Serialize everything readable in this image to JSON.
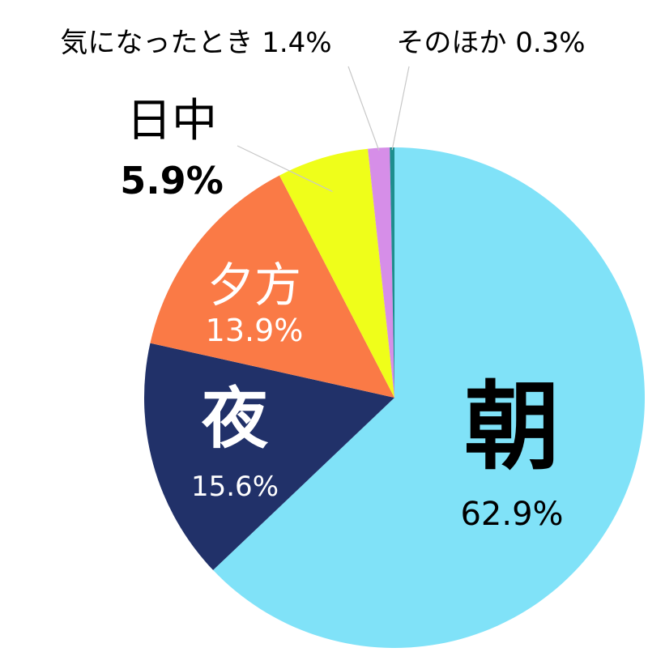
{
  "chart_data": {
    "type": "pie",
    "start_angle_deg": 0,
    "direction": "clockwise",
    "slices": [
      {
        "label": "朝",
        "value": 62.9,
        "value_label": "62.9%",
        "color": "#80E2F8",
        "label_color": "#000000"
      },
      {
        "label": "夜",
        "value": 15.6,
        "value_label": "15.6%",
        "color": "#213169",
        "label_color": "#ffffff"
      },
      {
        "label": "夕方",
        "value": 13.9,
        "value_label": "13.9%",
        "color": "#FA7A46",
        "label_color": "#ffffff"
      },
      {
        "label": "日中",
        "value": 5.9,
        "value_label": "5.9%",
        "color": "#EFFE1A",
        "label_color": "#000000"
      },
      {
        "label": "気になったとき",
        "value": 1.4,
        "value_label": "1.4%",
        "color": "#D68EE8",
        "label_color": "#000000"
      },
      {
        "label": "そのほか",
        "value": 0.3,
        "value_label": "0.3%",
        "color": "#1E8E8E",
        "label_color": "#000000"
      }
    ]
  }
}
